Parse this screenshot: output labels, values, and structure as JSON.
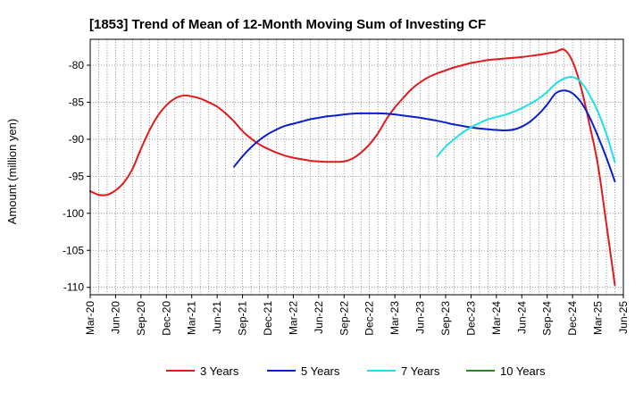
{
  "chart_data": {
    "type": "line",
    "title": "[1853]  Trend of Mean of 12-Month Moving Sum of Investing CF",
    "xlabel": "",
    "ylabel": "Amount (million yen)",
    "ylim": [
      -111,
      -76.5
    ],
    "yticks": [
      -80,
      -85,
      -90,
      -95,
      -100,
      -105,
      -110
    ],
    "ytick_labels": [
      "-80",
      "-85",
      "-90",
      "-95",
      "-100",
      "-105",
      "-110"
    ],
    "xlim": [
      "2020-03",
      "2025-06"
    ],
    "xtick_labels": [
      "Mar-20",
      "Jun-20",
      "Sep-20",
      "Dec-20",
      "Mar-21",
      "Jun-21",
      "Sep-21",
      "Dec-21",
      "Mar-22",
      "Jun-22",
      "Sep-22",
      "Dec-22",
      "Mar-23",
      "Jun-23",
      "Sep-23",
      "Dec-23",
      "Mar-24",
      "Jun-24",
      "Sep-24",
      "Dec-24",
      "Mar-25",
      "Jun-25"
    ],
    "grid": true,
    "legend_position": "bottom",
    "series": [
      {
        "name": "3 Years",
        "color": "#e31a1c",
        "points": [
          [
            "2020-03",
            -97.0
          ],
          [
            "2020-04",
            -97.5
          ],
          [
            "2020-05",
            -97.5
          ],
          [
            "2020-06",
            -96.9
          ],
          [
            "2020-07",
            -95.8
          ],
          [
            "2020-08",
            -94.0
          ],
          [
            "2020-09",
            -91.3
          ],
          [
            "2020-10",
            -88.8
          ],
          [
            "2020-11",
            -86.8
          ],
          [
            "2020-12",
            -85.4
          ],
          [
            "2021-01",
            -84.5
          ],
          [
            "2021-02",
            -84.1
          ],
          [
            "2021-03",
            -84.2
          ],
          [
            "2021-04",
            -84.5
          ],
          [
            "2021-05",
            -85.0
          ],
          [
            "2021-06",
            -85.6
          ],
          [
            "2021-07",
            -86.5
          ],
          [
            "2021-08",
            -87.6
          ],
          [
            "2021-09",
            -88.9
          ],
          [
            "2021-10",
            -89.9
          ],
          [
            "2021-11",
            -90.7
          ],
          [
            "2021-12",
            -91.3
          ],
          [
            "2022-01",
            -91.8
          ],
          [
            "2022-02",
            -92.2
          ],
          [
            "2022-03",
            -92.5
          ],
          [
            "2022-04",
            -92.7
          ],
          [
            "2022-05",
            -92.9
          ],
          [
            "2022-06",
            -93.0
          ],
          [
            "2022-07",
            -93.05
          ],
          [
            "2022-08",
            -93.05
          ],
          [
            "2022-09",
            -93.0
          ],
          [
            "2022-10",
            -92.6
          ],
          [
            "2022-11",
            -91.8
          ],
          [
            "2022-12",
            -90.7
          ],
          [
            "2023-01",
            -89.2
          ],
          [
            "2023-02",
            -87.3
          ],
          [
            "2023-03",
            -85.7
          ],
          [
            "2023-04",
            -84.4
          ],
          [
            "2023-05",
            -83.2
          ],
          [
            "2023-06",
            -82.3
          ],
          [
            "2023-07",
            -81.6
          ],
          [
            "2023-08",
            -81.1
          ],
          [
            "2023-09",
            -80.7
          ],
          [
            "2023-10",
            -80.3
          ],
          [
            "2023-11",
            -80.0
          ],
          [
            "2023-12",
            -79.7
          ],
          [
            "2024-01",
            -79.5
          ],
          [
            "2024-02",
            -79.3
          ],
          [
            "2024-03",
            -79.2
          ],
          [
            "2024-04",
            -79.1
          ],
          [
            "2024-05",
            -79.0
          ],
          [
            "2024-06",
            -78.9
          ],
          [
            "2024-07",
            -78.75
          ],
          [
            "2024-08",
            -78.6
          ],
          [
            "2024-09",
            -78.4
          ],
          [
            "2024-10",
            -78.2
          ],
          [
            "2024-11",
            -77.9
          ],
          [
            "2024-12",
            -79.5
          ],
          [
            "2025-01",
            -83.0
          ],
          [
            "2025-02",
            -88.0
          ],
          [
            "2025-03",
            -93.5
          ],
          [
            "2025-04",
            -101.5
          ],
          [
            "2025-05",
            -109.7
          ]
        ]
      },
      {
        "name": "5 Years",
        "color": "#0a1fcf",
        "points": [
          [
            "2021-08",
            -93.7
          ],
          [
            "2021-09",
            -92.3
          ],
          [
            "2021-10",
            -91.1
          ],
          [
            "2021-11",
            -90.1
          ],
          [
            "2021-12",
            -89.3
          ],
          [
            "2022-01",
            -88.7
          ],
          [
            "2022-02",
            -88.2
          ],
          [
            "2022-03",
            -87.9
          ],
          [
            "2022-04",
            -87.6
          ],
          [
            "2022-05",
            -87.3
          ],
          [
            "2022-06",
            -87.1
          ],
          [
            "2022-07",
            -86.9
          ],
          [
            "2022-08",
            -86.8
          ],
          [
            "2022-09",
            -86.65
          ],
          [
            "2022-10",
            -86.55
          ],
          [
            "2022-11",
            -86.5
          ],
          [
            "2022-12",
            -86.5
          ],
          [
            "2023-01",
            -86.5
          ],
          [
            "2023-02",
            -86.55
          ],
          [
            "2023-03",
            -86.65
          ],
          [
            "2023-04",
            -86.8
          ],
          [
            "2023-05",
            -86.95
          ],
          [
            "2023-06",
            -87.1
          ],
          [
            "2023-07",
            -87.3
          ],
          [
            "2023-08",
            -87.5
          ],
          [
            "2023-09",
            -87.75
          ],
          [
            "2023-10",
            -88.0
          ],
          [
            "2023-11",
            -88.2
          ],
          [
            "2023-12",
            -88.4
          ],
          [
            "2024-01",
            -88.55
          ],
          [
            "2024-02",
            -88.65
          ],
          [
            "2024-03",
            -88.75
          ],
          [
            "2024-04",
            -88.8
          ],
          [
            "2024-05",
            -88.7
          ],
          [
            "2024-06",
            -88.3
          ],
          [
            "2024-07",
            -87.6
          ],
          [
            "2024-08",
            -86.6
          ],
          [
            "2024-09",
            -85.3
          ],
          [
            "2024-10",
            -83.8
          ],
          [
            "2024-11",
            -83.4
          ],
          [
            "2024-12",
            -83.8
          ],
          [
            "2025-01",
            -85.0
          ],
          [
            "2025-02",
            -87.0
          ],
          [
            "2025-03",
            -89.6
          ],
          [
            "2025-04",
            -92.5
          ],
          [
            "2025-05",
            -95.7
          ]
        ]
      },
      {
        "name": "7 Years",
        "color": "#1de0ea",
        "points": [
          [
            "2023-08",
            -92.3
          ],
          [
            "2023-09",
            -91.0
          ],
          [
            "2023-10",
            -90.0
          ],
          [
            "2023-11",
            -89.1
          ],
          [
            "2023-12",
            -88.4
          ],
          [
            "2024-01",
            -87.8
          ],
          [
            "2024-02",
            -87.3
          ],
          [
            "2024-03",
            -87.0
          ],
          [
            "2024-04",
            -86.7
          ],
          [
            "2024-05",
            -86.3
          ],
          [
            "2024-06",
            -85.8
          ],
          [
            "2024-07",
            -85.2
          ],
          [
            "2024-08",
            -84.5
          ],
          [
            "2024-09",
            -83.6
          ],
          [
            "2024-10",
            -82.5
          ],
          [
            "2024-11",
            -81.8
          ],
          [
            "2024-12",
            -81.6
          ],
          [
            "2025-01",
            -82.3
          ],
          [
            "2025-02",
            -84.0
          ],
          [
            "2025-03",
            -86.3
          ],
          [
            "2025-04",
            -89.3
          ],
          [
            "2025-05",
            -93.1
          ]
        ]
      },
      {
        "name": "10 Years",
        "color": "#1f8a1f",
        "points": []
      }
    ]
  }
}
